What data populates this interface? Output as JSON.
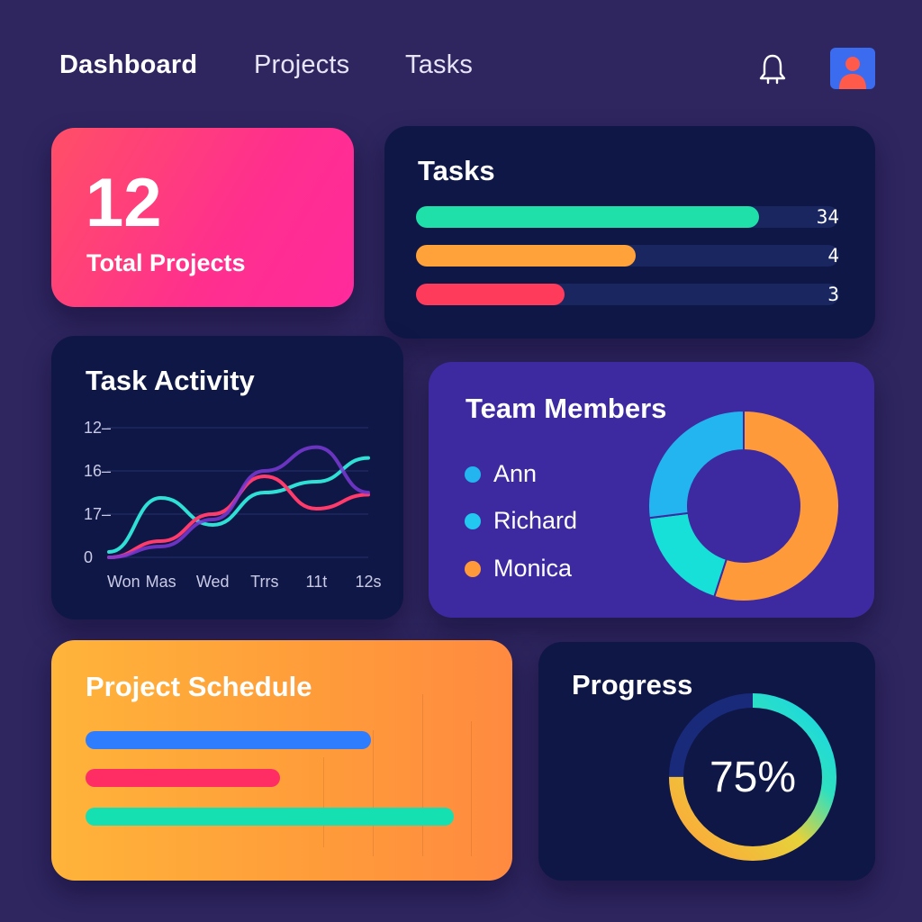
{
  "nav": {
    "items": [
      {
        "label": "Dashboard",
        "active": true
      },
      {
        "label": "Projects",
        "active": false
      },
      {
        "label": "Tasks",
        "active": false
      }
    ],
    "bell_icon": "bell-icon",
    "avatar_icon": "user-avatar-icon"
  },
  "total_projects": {
    "value": "12",
    "label": "Total Projects"
  },
  "tasks": {
    "title": "Tasks",
    "bars": [
      {
        "label": "34",
        "fraction": 0.81,
        "color": "#1ee0a8"
      },
      {
        "label": "4",
        "fraction": 0.52,
        "color": "#ffa23a"
      },
      {
        "label": "3",
        "fraction": 0.35,
        "color": "#ff3b5c"
      }
    ]
  },
  "task_activity": {
    "title": "Task Activity",
    "chart_data": {
      "type": "line",
      "categories": [
        "Won",
        "Mas",
        "Wed",
        "Trrs",
        "1​1t",
        "1​2s"
      ],
      "y_tick_labels": [
        "12–",
        "16–",
        "17–",
        "0"
      ],
      "xlabel": "",
      "ylabel": "",
      "ylim": [
        0,
        12
      ],
      "series": [
        {
          "color": "#2ee0d6",
          "values": [
            0.5,
            5.5,
            3.0,
            6.0,
            7.0,
            9.2
          ]
        },
        {
          "color": "#ff3b6b",
          "values": [
            0.0,
            1.5,
            4.0,
            7.5,
            4.5,
            5.8
          ]
        },
        {
          "color": "#7a3ad6",
          "values": [
            0.0,
            1.0,
            3.5,
            8.0,
            10.2,
            6.0
          ]
        }
      ],
      "grid": true
    }
  },
  "team_members": {
    "title": "Team Members",
    "members": [
      {
        "name": "Ann",
        "color": "#22b5f0"
      },
      {
        "name": "Richard",
        "color": "#22c8f0"
      },
      {
        "name": "Monica",
        "color": "#ff9a3a"
      }
    ],
    "chart_data": {
      "type": "pie",
      "slices": [
        {
          "label": "Monica",
          "value": 55,
          "color": "#ff9a3a"
        },
        {
          "label": "Richard",
          "value": 18,
          "color": "#17e0d8"
        },
        {
          "label": "Ann",
          "value": 27,
          "color": "#22b5f0"
        }
      ]
    }
  },
  "project_schedule": {
    "title": "Project Schedule",
    "bars": [
      {
        "fraction": 0.72,
        "color": "#2f7dff"
      },
      {
        "fraction": 0.49,
        "color": "#ff2d64"
      },
      {
        "fraction": 0.93,
        "color": "#14e0b2"
      }
    ]
  },
  "progress": {
    "title": "Progress",
    "value_label": "75%",
    "percent": 75
  }
}
